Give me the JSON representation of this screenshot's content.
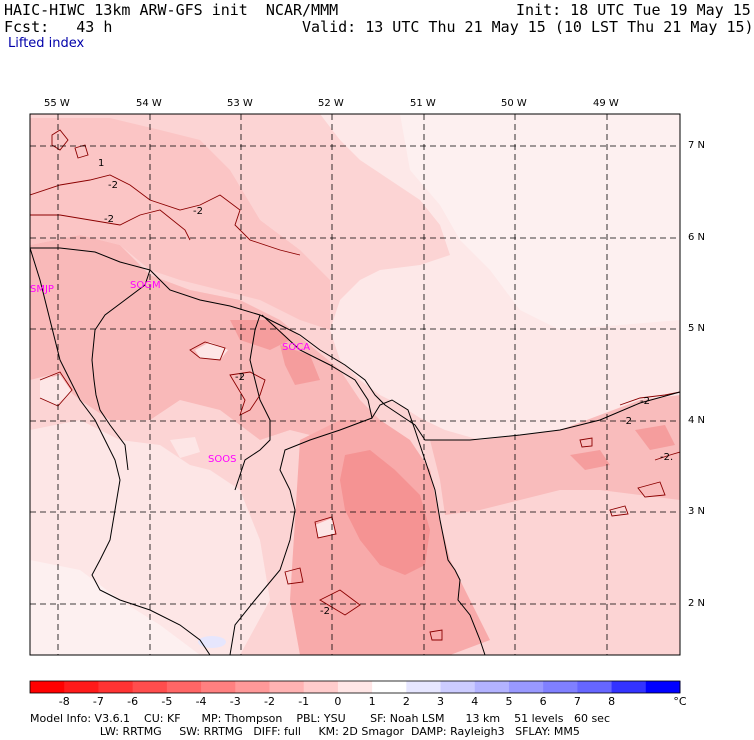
{
  "header": {
    "line1_left": "HAIC-HIWC 13km ARW-GFS init  NCAR/MMM",
    "line1_right": "Init: 18 UTC Tue 19 May 15",
    "line2_left": "Fcst:   43 h",
    "line2_right": "Valid: 13 UTC Thu 21 May 15 (10 LST Thu 21 May 15)",
    "field_name": "Lifted index"
  },
  "map": {
    "lon_labels": [
      "55 W",
      "54 W",
      "53 W",
      "52 W",
      "51 W",
      "50 W",
      "49 W"
    ],
    "lat_labels": [
      "7 N",
      "6 N",
      "5 N",
      "4 N",
      "3 N",
      "2 N"
    ],
    "stations": [
      "SMJP",
      "SOGM",
      "SOCA",
      "SOOS"
    ],
    "contour_labels": [
      "1",
      "-2",
      "-2",
      "-2",
      "-2",
      "-2",
      "-2",
      "-2",
      "-2."
    ],
    "colors": {
      "neg1": "#fde6e6",
      "neg2": "#fcd2d2",
      "neg3": "#fbb5b5",
      "neg4": "#f99a9a",
      "pos1": "#e6e6fd",
      "station": "#ff00ff"
    }
  },
  "colorbar": {
    "labels": [
      "-8",
      "-7",
      "-6",
      "-5",
      "-4",
      "-3",
      "-2",
      "-1",
      "0",
      "1",
      "2",
      "3",
      "4",
      "5",
      "6",
      "7",
      "8"
    ],
    "unit": "°C",
    "colors": [
      "#ff0000",
      "#ff1a1a",
      "#ff3333",
      "#ff4d4d",
      "#ff6666",
      "#ff8080",
      "#ff9999",
      "#ffb3b3",
      "#ffcccc",
      "#ffe6e6",
      "#ffffff",
      "#e6e6ff",
      "#ccccff",
      "#b3b3ff",
      "#9999ff",
      "#8080ff",
      "#6666ff",
      "#3333ff",
      "#0000ff"
    ]
  },
  "footer": {
    "line1": "Model Info: V3.6.1    CU: KF      MP: Thompson    PBL: YSU       SF: Noah LSM      13 km    51 levels   60 sec",
    "line2": "                    LW: RRTMG     SW: RRTMG   DIFF: full     KM: 2D Smagor  DAMP: Rayleigh3   SFLAY: MM5"
  }
}
